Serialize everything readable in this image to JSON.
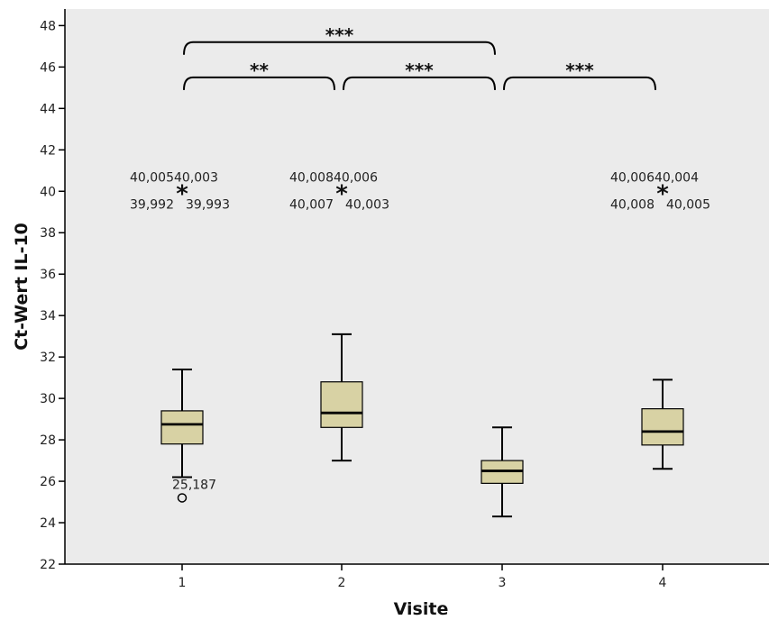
{
  "colors": {
    "plot_background": "#ebebeb",
    "box_fill": "#d8d2a4",
    "line": "#000000"
  },
  "chart_data": {
    "type": "boxplot",
    "xlabel": "Visite",
    "ylabel": "Ct-Wert IL-10",
    "ylim": [
      22,
      48.8
    ],
    "yticks": [
      22,
      24,
      26,
      28,
      30,
      32,
      34,
      36,
      38,
      40,
      42,
      44,
      46,
      48
    ],
    "categories": [
      "1",
      "2",
      "3",
      "4"
    ],
    "boxes": [
      {
        "category": "1",
        "whisker_low": 26.2,
        "q1": 27.8,
        "median": 28.75,
        "q3": 29.4,
        "whisker_high": 31.4
      },
      {
        "category": "2",
        "whisker_low": 27.0,
        "q1": 28.6,
        "median": 29.3,
        "q3": 30.8,
        "whisker_high": 33.1
      },
      {
        "category": "3",
        "whisker_low": 24.3,
        "q1": 25.9,
        "median": 26.5,
        "q3": 27.0,
        "whisker_high": 28.6
      },
      {
        "category": "4",
        "whisker_low": 26.6,
        "q1": 27.75,
        "median": 28.4,
        "q3": 29.5,
        "whisker_high": 30.9
      }
    ],
    "outliers": [
      {
        "category": "1",
        "value": 25.2,
        "marker": "circle",
        "label": "25,187"
      }
    ],
    "extremes": [
      {
        "category": "1",
        "value": 40.0,
        "marker": "star",
        "labels": [
          "40,005",
          "40,003",
          "39,992",
          "39,993"
        ]
      },
      {
        "category": "2",
        "value": 40.0,
        "marker": "star",
        "labels": [
          "40,008",
          "40,006",
          "40,007",
          "40,003"
        ]
      },
      {
        "category": "4",
        "value": 40.0,
        "marker": "star",
        "labels": [
          "40,006",
          "40,004",
          "40,008",
          "40,005"
        ]
      }
    ],
    "significance": [
      {
        "from": "1",
        "to": "3",
        "label": "***",
        "level": 47.2
      },
      {
        "from": "1",
        "to": "2",
        "label": "**",
        "level": 45.5
      },
      {
        "from": "2",
        "to": "3",
        "label": "***",
        "level": 45.5
      },
      {
        "from": "3",
        "to": "4",
        "label": "***",
        "level": 45.5
      }
    ]
  }
}
